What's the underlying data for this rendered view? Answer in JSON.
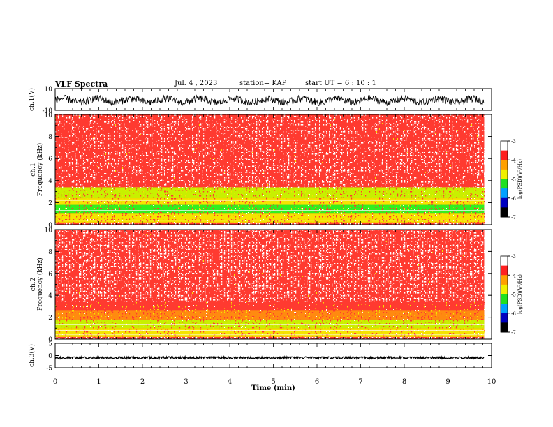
{
  "header": {
    "title": "VLF Spectra",
    "date": "Jul. 4 , 2023",
    "station": "station= KAP",
    "start": "start UT = 6 : 10 : 1"
  },
  "colors": {
    "spectrum_low": "#ff3a30",
    "spectrum_high": "#ffffff",
    "band_yellow": "#f5e400",
    "band_green": "#30f020",
    "waveform": "#000000"
  },
  "chart_data": [
    {
      "type": "line",
      "name": "ch1-waveform",
      "ylabel": "ch.1(V)",
      "ylim": [
        -10,
        10
      ],
      "yticks": [
        "10",
        "-10"
      ],
      "xlim": [
        0,
        10
      ],
      "description_values": {
        "typical_range": [
          -4,
          2
        ]
      }
    },
    {
      "type": "heatmap",
      "name": "ch1-spectrogram",
      "ylabel": "ch.1\nFrequency (kHz)",
      "ylim": [
        0,
        10
      ],
      "yticks": [
        "0",
        "2",
        "4",
        "6",
        "8",
        "10"
      ],
      "xlim": [
        0,
        9.83
      ],
      "bands_khz": [
        {
          "from": 0.2,
          "to": 1.0,
          "level": -4.6
        },
        {
          "from": 1.0,
          "to": 1.8,
          "level": -5.6
        },
        {
          "from": 1.8,
          "to": 2.4,
          "level": -4.4
        },
        {
          "from": 2.4,
          "to": 3.4,
          "level": -5.0
        },
        {
          "from": 3.4,
          "to": 10.0,
          "level": -3.6
        }
      ],
      "colorbar": {
        "label": "log(PSD)(V²/Hz)",
        "range": [
          -7,
          -3
        ],
        "ticks": [
          "-3",
          "-4",
          "-5",
          "-6",
          "-7"
        ]
      }
    },
    {
      "type": "heatmap",
      "name": "ch2-spectrogram",
      "ylabel": "ch.2\nFrequency (kHz)",
      "ylim": [
        0,
        10
      ],
      "yticks": [
        "0",
        "2",
        "4",
        "6",
        "8",
        "10"
      ],
      "xlim": [
        0,
        9.83
      ],
      "bands_khz": [
        {
          "from": 0.2,
          "to": 1.0,
          "level": -4.6
        },
        {
          "from": 1.0,
          "to": 1.8,
          "level": -5.0
        },
        {
          "from": 1.8,
          "to": 2.6,
          "level": -4.2
        },
        {
          "from": 2.6,
          "to": 10.0,
          "level": -3.3
        }
      ],
      "colorbar": {
        "label": "log(PSD)(V²/Hz)",
        "range": [
          -7,
          -3
        ],
        "ticks": [
          "-3",
          "-4",
          "-5",
          "-6",
          "-7"
        ]
      }
    },
    {
      "type": "line",
      "name": "ch3-waveform",
      "ylabel": "ch.3(V)",
      "ylim": [
        -5,
        5
      ],
      "yticks": [
        "5",
        "0",
        "-5"
      ],
      "xlim": [
        0,
        10
      ],
      "description_values": {
        "typical_range": [
          -1.1,
          -0.6
        ]
      }
    }
  ],
  "xaxis": {
    "label": "Time (min)",
    "ticks": [
      "0",
      "1",
      "2",
      "3",
      "4",
      "5",
      "6",
      "7",
      "8",
      "9",
      "10"
    ]
  }
}
